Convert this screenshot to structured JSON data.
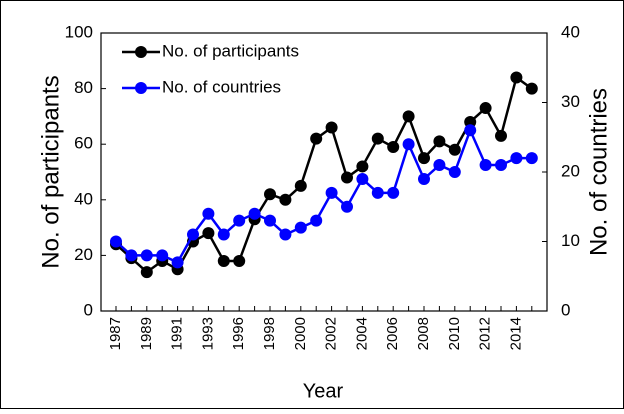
{
  "chart_data": {
    "type": "line",
    "categories": [
      "1987",
      null,
      "1989",
      null,
      "1991",
      null,
      "1993",
      null,
      "1996",
      null,
      "1998",
      null,
      "2000",
      null,
      "2002",
      null,
      "2004",
      null,
      "2006",
      null,
      "2008",
      null,
      "2010",
      null,
      "2012",
      null,
      "2014",
      null
    ],
    "x_label": "Year",
    "y_label": "No. of participants",
    "y2_label": "No. of countries",
    "ylim": [
      0,
      100
    ],
    "yticks": [
      0,
      20,
      40,
      60,
      80,
      100
    ],
    "y2lim": [
      0,
      40
    ],
    "y2ticks": [
      0,
      10,
      20,
      30,
      40
    ],
    "legend": "upper left",
    "series": [
      {
        "name": "No. of participants",
        "color": "#000000",
        "values": [
          24,
          19,
          14,
          18,
          15,
          25,
          28,
          18,
          18,
          33,
          42,
          40,
          45,
          62,
          66,
          48,
          52,
          62,
          59,
          70,
          55,
          61,
          58,
          68,
          73,
          63,
          84,
          80
        ]
      },
      {
        "name": "No. of countries",
        "color": "#0000ff",
        "axis": "y2",
        "values": [
          10,
          8,
          8,
          8,
          7,
          11,
          14,
          11,
          13,
          14,
          13,
          11,
          12,
          13,
          17,
          15,
          19,
          17,
          17,
          24,
          19,
          21,
          20,
          26,
          21,
          21,
          22,
          22
        ]
      }
    ]
  }
}
